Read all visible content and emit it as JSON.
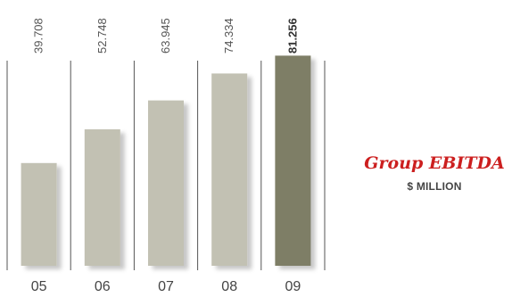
{
  "chart_data": {
    "type": "bar",
    "categories": [
      "05",
      "06",
      "07",
      "08",
      "09"
    ],
    "values": [
      39.708,
      52.748,
      63.945,
      74.334,
      81.256
    ],
    "value_labels": [
      "39.708",
      "52.748",
      "63.945",
      "74.334",
      "81.256"
    ],
    "highlight_index": 4,
    "title": "Group EBITDA",
    "subtitle": "$ MILLION",
    "xlabel": "",
    "ylabel": "",
    "ylim": [
      0,
      100
    ],
    "grid": false,
    "legend": "none"
  },
  "colors": {
    "bar": "#c2c1b3",
    "bar_highlight": "#7e7e66",
    "divider": "#555555",
    "value_text": "#555555",
    "value_text_highlight": "#333333",
    "category_text": "#444444",
    "title": "#cc1f1f",
    "subtitle": "#444444"
  }
}
